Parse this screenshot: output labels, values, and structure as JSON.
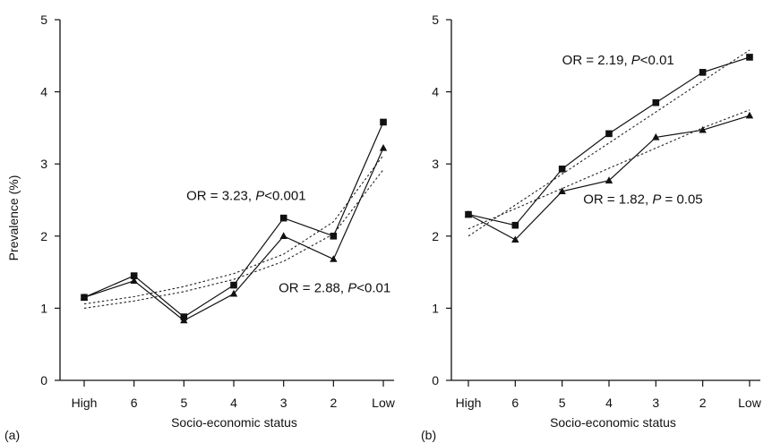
{
  "chart_data": [
    {
      "type": "line",
      "panel_label": "(a)",
      "categories": [
        "High",
        "6",
        "5",
        "4",
        "3",
        "2",
        "Low"
      ],
      "xlabel": "Socio-economic status",
      "ylabel": "Prevalence (%)",
      "ylim": [
        0,
        5
      ],
      "yticks": [
        "0",
        "1",
        "2",
        "3",
        "4",
        "5"
      ],
      "grid": false,
      "series": [
        {
          "marker": "square",
          "values": [
            1.15,
            1.45,
            0.88,
            1.32,
            2.25,
            2.0,
            3.58
          ]
        },
        {
          "marker": "triangle",
          "values": [
            1.15,
            1.38,
            0.83,
            1.2,
            2.0,
            1.68,
            3.22
          ]
        }
      ],
      "trendlines": [
        {
          "of_series": 0,
          "values": [
            1.06,
            1.16,
            1.3,
            1.48,
            1.75,
            2.2,
            3.12
          ]
        },
        {
          "of_series": 1,
          "values": [
            1.0,
            1.1,
            1.23,
            1.4,
            1.65,
            2.03,
            2.92
          ]
        }
      ],
      "annotations": [
        {
          "of_series": 0,
          "parts": [
            {
              "text": "OR = 3.23, ",
              "italic": false
            },
            {
              "text": "P",
              "italic": true
            },
            {
              "text": "<0.001",
              "italic": false
            }
          ],
          "at": {
            "x_index": 2.05,
            "y": 2.5
          }
        },
        {
          "of_series": 1,
          "parts": [
            {
              "text": "OR = 2.88, ",
              "italic": false
            },
            {
              "text": "P",
              "italic": true
            },
            {
              "text": "<0.01",
              "italic": false
            }
          ],
          "at": {
            "x_index": 3.9,
            "y": 1.22
          }
        }
      ]
    },
    {
      "type": "line",
      "panel_label": "(b)",
      "categories": [
        "High",
        "6",
        "5",
        "4",
        "3",
        "2",
        "Low"
      ],
      "xlabel": "Socio-economic status",
      "ylabel": "",
      "ylim": [
        0,
        5
      ],
      "yticks": [
        "0",
        "1",
        "2",
        "3",
        "4",
        "5"
      ],
      "grid": false,
      "series": [
        {
          "marker": "square",
          "values": [
            2.3,
            2.15,
            2.93,
            3.42,
            3.85,
            4.27,
            4.48
          ]
        },
        {
          "marker": "triangle",
          "values": [
            2.3,
            1.95,
            2.62,
            2.77,
            3.37,
            3.47,
            3.67
          ]
        }
      ],
      "trendlines": [
        {
          "of_series": 0,
          "values": [
            2.0,
            2.43,
            2.86,
            3.29,
            3.72,
            4.15,
            4.58
          ]
        },
        {
          "of_series": 1,
          "values": [
            2.1,
            2.38,
            2.66,
            2.94,
            3.22,
            3.5,
            3.75
          ]
        }
      ],
      "annotations": [
        {
          "of_series": 0,
          "parts": [
            {
              "text": "OR = 2.19, ",
              "italic": false
            },
            {
              "text": "P",
              "italic": true
            },
            {
              "text": "<0.01",
              "italic": false
            }
          ],
          "at": {
            "x_index": 2.0,
            "y": 4.38
          }
        },
        {
          "of_series": 1,
          "parts": [
            {
              "text": "OR = 1.82, ",
              "italic": false
            },
            {
              "text": "P",
              "italic": true
            },
            {
              "text": " = 0.05",
              "italic": false
            }
          ],
          "at": {
            "x_index": 2.45,
            "y": 2.45
          }
        }
      ]
    }
  ]
}
